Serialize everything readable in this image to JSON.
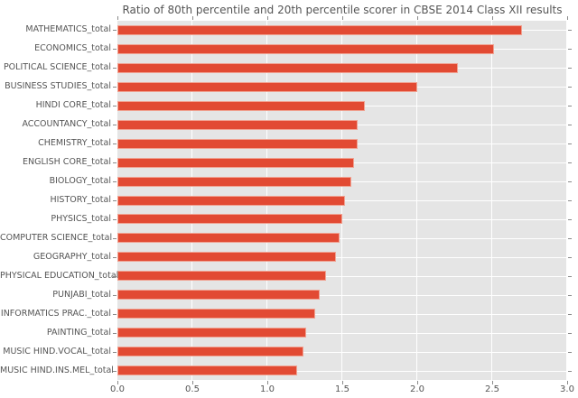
{
  "colors": {
    "bar_fill": "#e24a33",
    "bar_edge": "#f0a292",
    "plot_background": "#e5e5e5",
    "gridline": "#ffffff",
    "text": "#555555",
    "tick": "#8a8a8a",
    "figure_background": "#ffffff"
  },
  "chart_data": {
    "type": "bar",
    "orientation": "horizontal",
    "title": "Ratio of 80th percentile and 20th percentile scorer in CBSE 2014 Class XII results",
    "xlabel": "",
    "ylabel": "",
    "grid": true,
    "legend": null,
    "xlim": [
      0,
      3.0
    ],
    "xticks": [
      0.0,
      0.5,
      1.0,
      1.5,
      2.0,
      2.5,
      3.0
    ],
    "xtick_labels": [
      "0.0",
      "0.5",
      "1.0",
      "1.5",
      "2.0",
      "2.5",
      "3.0"
    ],
    "categories": [
      "MATHEMATICS_total",
      "ECONOMICS_total",
      "POLITICAL SCIENCE_total",
      "BUSINESS STUDIES_total",
      "HINDI CORE_total",
      "ACCOUNTANCY_total",
      "CHEMISTRY_total",
      "ENGLISH CORE_total",
      "BIOLOGY_total",
      "HISTORY_total",
      "PHYSICS_total",
      "COMPUTER SCIENCE_total",
      "GEOGRAPHY_total",
      "PHYSICAL EDUCATION_total",
      "PUNJABI_total",
      "INFORMATICS PRAC._total",
      "PAINTING_total",
      "MUSIC HIND.VOCAL_total",
      "MUSIC HIND.INS.MEL_total"
    ],
    "values": [
      2.7,
      2.51,
      2.27,
      2.0,
      1.65,
      1.6,
      1.6,
      1.58,
      1.56,
      1.52,
      1.5,
      1.48,
      1.46,
      1.39,
      1.35,
      1.32,
      1.26,
      1.24,
      1.2
    ]
  }
}
